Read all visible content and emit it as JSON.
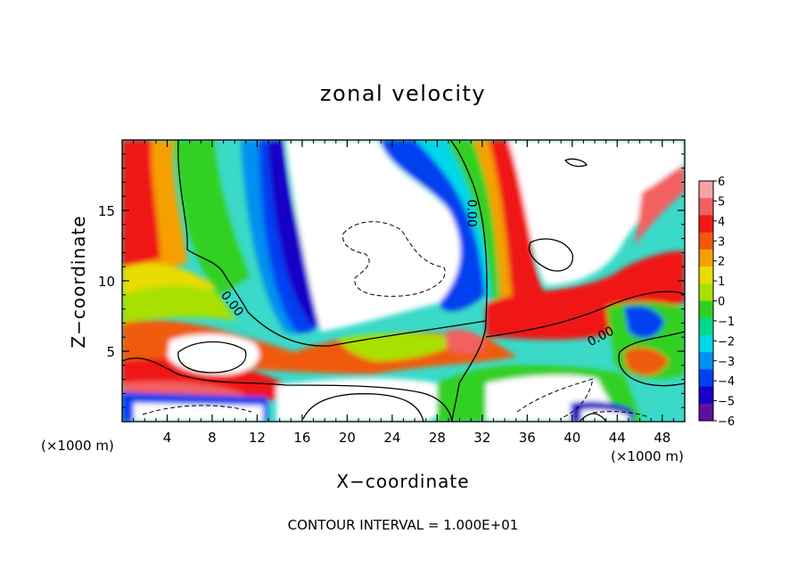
{
  "chart_data": {
    "type": "heatmap",
    "title": "zonal velocity",
    "xlabel": "X−coordinate",
    "ylabel": "Z−coordinate",
    "x_unit": "(×1000 m)",
    "x_unit_right": "(×1000 m)",
    "xlim": [
      0,
      50
    ],
    "ylim": [
      0,
      20
    ],
    "x_ticks": [
      4,
      8,
      12,
      16,
      20,
      24,
      28,
      32,
      36,
      40,
      44,
      48
    ],
    "y_ticks": [
      5,
      10,
      15
    ],
    "colorbar": {
      "levels": [
        6,
        5,
        4,
        3,
        2,
        1,
        0,
        -1,
        -2,
        -3,
        -4,
        -5,
        -6
      ],
      "labels": [
        "6",
        "5",
        "4",
        "3",
        "2",
        "1",
        "0",
        "−1",
        "−2",
        "−3",
        "−4",
        "−5",
        "−6"
      ],
      "colors": [
        "#f4a4a4",
        "#f26060",
        "#f01818",
        "#f05a0a",
        "#f5a000",
        "#e8dc00",
        "#a8e000",
        "#30d020",
        "#00d890",
        "#00d8e8",
        "#0090f0",
        "#0040f0",
        "#1800c8",
        "#6010a0"
      ]
    },
    "contour_labels": [
      {
        "text": "0.00",
        "x": 9.5,
        "z": 8.2,
        "angle": 52
      },
      {
        "text": "0.00",
        "x": 30.7,
        "z": 14.8,
        "angle": 90
      },
      {
        "text": "0.00",
        "x": 42.7,
        "z": 5.8,
        "angle": -28
      }
    ],
    "footer": "CONTOUR INTERVAL = 1.000E+01"
  }
}
